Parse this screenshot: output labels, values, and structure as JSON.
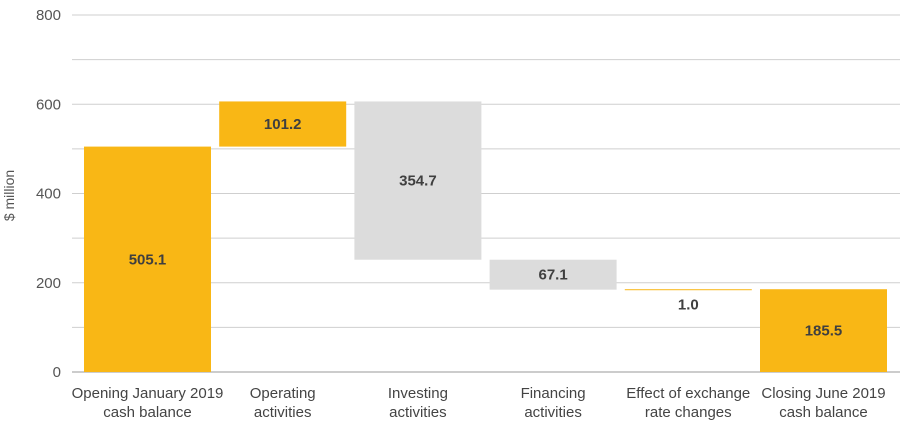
{
  "chart_data": {
    "type": "bar",
    "subtype": "waterfall",
    "ylabel": "$ million",
    "ylim": [
      0,
      800
    ],
    "yticks": [
      0,
      200,
      400,
      600,
      800
    ],
    "grid": true,
    "categories": [
      [
        "Opening January 2019",
        "cash balance"
      ],
      [
        "Operating",
        "activities"
      ],
      [
        "Investing",
        "activities"
      ],
      [
        "Financing",
        "activities"
      ],
      [
        "Effect of exchange",
        "rate changes"
      ],
      [
        "Closing June 2019",
        "cash balance"
      ]
    ],
    "bars": [
      {
        "kind": "total",
        "start": 0,
        "end": 505.1,
        "label": "505.1",
        "color": "#f9b715"
      },
      {
        "kind": "increase",
        "start": 505.1,
        "end": 606.3,
        "label": "101.2",
        "color": "#f9b715"
      },
      {
        "kind": "decrease",
        "start": 606.3,
        "end": 251.6,
        "label": "354.7",
        "color": "#dcdcdc"
      },
      {
        "kind": "decrease",
        "start": 251.6,
        "end": 184.5,
        "label": "67.1",
        "color": "#dcdcdc"
      },
      {
        "kind": "increase",
        "start": 184.5,
        "end": 185.5,
        "label": "1.0",
        "color": "#f9b715"
      },
      {
        "kind": "total",
        "start": 0,
        "end": 185.5,
        "label": "185.5",
        "color": "#f9b715"
      }
    ],
    "colors": {
      "increase": "#f9b715",
      "decrease": "#dcdcdc",
      "grid": "#cfcfcf",
      "text": "#3f3f3f"
    }
  }
}
